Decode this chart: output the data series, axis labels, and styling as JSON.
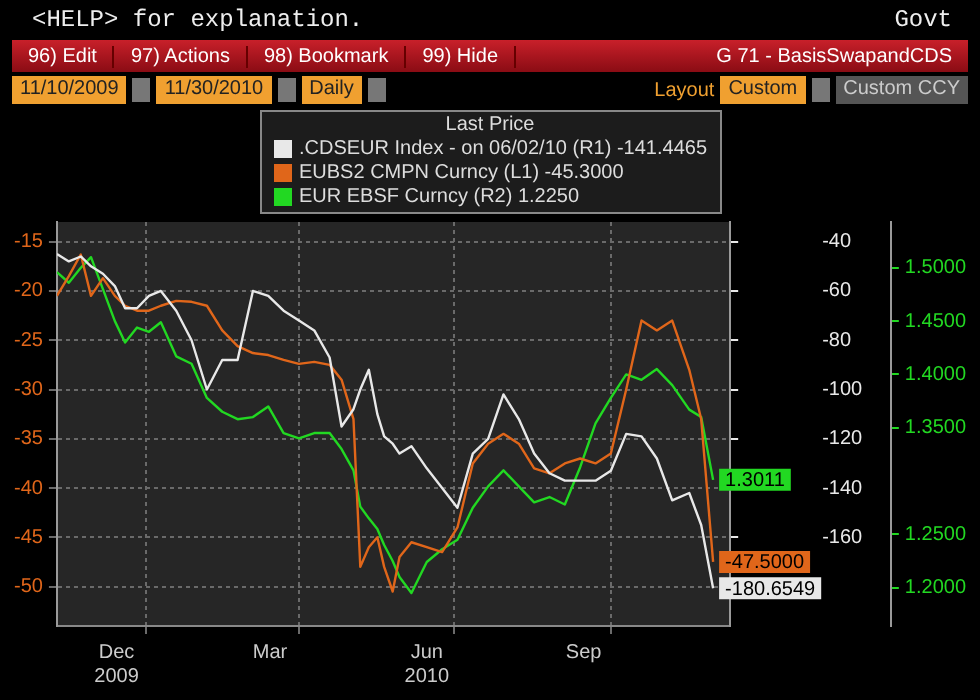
{
  "chart_data": {
    "type": "line",
    "title": "G 71 - BasisSwapandCDS",
    "annotations": [
      "<HELP> for explanation.",
      "Govt",
      "96) Edit",
      "97) Actions",
      "98) Bookmark",
      "99) Hide",
      "11/10/2009",
      "11/30/2010",
      "Daily",
      "Layout",
      "Custom",
      "Custom CCY"
    ],
    "legend": "top",
    "legend_title": "Last Price",
    "grid": true,
    "x": [
      "2009-11-10",
      "2009-11-17",
      "2009-11-24",
      "2009-11-30",
      "2009-12-07",
      "2009-12-14",
      "2009-12-20",
      "2009-12-27",
      "2010-01-03",
      "2010-01-10",
      "2010-01-19",
      "2010-01-28",
      "2010-02-06",
      "2010-02-15",
      "2010-02-24",
      "2010-03-05",
      "2010-03-14",
      "2010-03-23",
      "2010-04-01",
      "2010-04-10",
      "2010-04-19",
      "2010-04-26",
      "2010-05-03",
      "2010-05-07",
      "2010-05-12",
      "2010-05-17",
      "2010-05-21",
      "2010-05-26",
      "2010-05-30",
      "2010-06-06",
      "2010-06-15",
      "2010-06-24",
      "2010-07-03",
      "2010-07-12",
      "2010-07-21",
      "2010-07-30",
      "2010-08-08",
      "2010-08-17",
      "2010-08-26",
      "2010-09-04",
      "2010-09-13",
      "2010-09-22",
      "2010-10-01",
      "2010-10-10",
      "2010-10-19",
      "2010-10-28",
      "2010-11-06",
      "2010-11-16",
      "2010-11-23",
      "2010-11-30"
    ],
    "xlim": [
      "2009-11-10",
      "2010-12-10"
    ],
    "xticks": [
      {
        "value": "2009-12-15",
        "label": "Dec\n2009"
      },
      {
        "value": "2010-01-01",
        "label": null
      },
      {
        "value": "2010-03-15",
        "label": "Mar"
      },
      {
        "value": "2010-04-01",
        "label": null
      },
      {
        "value": "2010-06-15",
        "label": "Jun\n2010"
      },
      {
        "value": "2010-07-01",
        "label": null
      },
      {
        "value": "2010-09-15",
        "label": "Sep"
      },
      {
        "value": "2010-10-01",
        "label": null
      }
    ],
    "ylim": [
      -54,
      -13
    ],
    "yticks": [
      -15,
      -20,
      -25,
      -30,
      -35,
      -40,
      -45,
      -50
    ],
    "y2lim": [
      -196,
      -32
    ],
    "y2ticks": [
      -40,
      -60,
      -80,
      -100,
      -120,
      -140,
      -160
    ],
    "y3lim": [
      1.164,
      1.543
    ],
    "y3ticks": [
      {
        "value": 1.2,
        "label": "1.2000"
      },
      {
        "value": 1.25,
        "label": "1.2500"
      },
      {
        "value": 1.35,
        "label": "1.3500"
      },
      {
        "value": 1.4,
        "label": "1.4000"
      },
      {
        "value": 1.45,
        "label": "1.4500"
      },
      {
        "value": 1.5,
        "label": "1.5000"
      }
    ],
    "series": [
      {
        "name": ".CDSEUR Index - on 06/02/10 (R1) -141.4465",
        "color": "#e8e8e8",
        "axis": "y2",
        "values": [
          -45,
          -48,
          -46,
          -50,
          -53,
          -58,
          -67,
          -67,
          -62,
          -60,
          -68,
          -80,
          -100,
          -88,
          -88,
          -60,
          -62,
          -68,
          -72,
          -76,
          -87,
          -115,
          -108,
          -100,
          -92,
          -110,
          -119,
          -122,
          -126,
          -123,
          -132,
          -140,
          -148,
          -126,
          -120,
          -102,
          -112,
          -126,
          -134,
          -137,
          -137,
          -137,
          -133,
          -118,
          -119,
          -128,
          -145,
          -142,
          -155,
          -180.6549
        ],
        "value_labels": [
          null,
          null,
          null,
          null,
          null,
          null,
          null,
          null,
          null,
          null,
          null,
          null,
          null,
          null,
          null,
          null,
          null,
          null,
          null,
          null,
          null,
          null,
          null,
          null,
          null,
          null,
          null,
          null,
          null,
          null,
          null,
          null,
          null,
          null,
          null,
          null,
          null,
          null,
          null,
          null,
          null,
          null,
          null,
          null,
          null,
          null,
          null,
          null,
          null,
          "-180.6549"
        ]
      },
      {
        "name": "EUBS2 CMPN Curncy (L1) -45.3000",
        "color": "#e0661a",
        "axis": "y",
        "values": [
          -20.5,
          -18.5,
          -16.3,
          -20.5,
          -18.7,
          -20.5,
          -21.5,
          -22,
          -22,
          -21.5,
          -21,
          -21.1,
          -21.5,
          -24,
          -25.6,
          -26.3,
          -26.5,
          -27,
          -27.4,
          -27.2,
          -27.5,
          -29,
          -33,
          -48,
          -46,
          -45,
          -48,
          -50.5,
          -47,
          -45.5,
          -46,
          -46.5,
          -44,
          -37.5,
          -35.5,
          -34.5,
          -35.5,
          -38,
          -38.5,
          -37.5,
          -37,
          -37.5,
          -36.5,
          -30,
          -23,
          -24,
          -23,
          -28,
          -33,
          -47.5
        ],
        "value_labels": [
          null,
          null,
          null,
          null,
          null,
          null,
          null,
          null,
          null,
          null,
          null,
          null,
          null,
          null,
          null,
          null,
          null,
          null,
          null,
          null,
          null,
          null,
          null,
          null,
          null,
          null,
          null,
          null,
          null,
          null,
          null,
          null,
          null,
          null,
          null,
          null,
          null,
          null,
          null,
          null,
          null,
          null,
          null,
          null,
          null,
          null,
          null,
          null,
          null,
          "-47.5000"
        ]
      },
      {
        "name": "EUR EBSF Curncy (R2) 1.2250",
        "color": "#22d822",
        "axis": "y3",
        "values": [
          1.496,
          1.486,
          1.5,
          1.51,
          1.48,
          1.45,
          1.43,
          1.444,
          1.44,
          1.449,
          1.417,
          1.41,
          1.378,
          1.365,
          1.358,
          1.36,
          1.37,
          1.345,
          1.34,
          1.345,
          1.345,
          1.33,
          1.31,
          1.276,
          1.265,
          1.255,
          1.24,
          1.225,
          1.21,
          1.195,
          1.224,
          1.236,
          1.245,
          1.275,
          1.295,
          1.31,
          1.295,
          1.28,
          1.285,
          1.278,
          1.313,
          1.354,
          1.378,
          1.4,
          1.395,
          1.405,
          1.39,
          1.367,
          1.36,
          1.3011
        ],
        "value_labels": [
          null,
          null,
          null,
          null,
          null,
          null,
          null,
          null,
          null,
          null,
          null,
          null,
          null,
          null,
          null,
          null,
          null,
          null,
          null,
          null,
          null,
          null,
          null,
          null,
          null,
          null,
          null,
          null,
          null,
          null,
          null,
          null,
          null,
          null,
          null,
          null,
          null,
          null,
          null,
          null,
          null,
          null,
          null,
          null,
          null,
          null,
          null,
          null,
          null,
          "1.3011"
        ]
      }
    ]
  }
}
